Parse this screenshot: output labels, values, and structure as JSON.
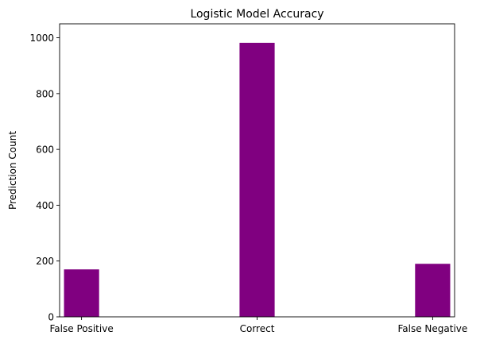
{
  "chart_data": {
    "type": "bar",
    "title": "Logistic Model Accuracy",
    "xlabel": "",
    "ylabel": "Prediction Count",
    "categories": [
      "False Positive",
      "Correct",
      "False Negative"
    ],
    "values": [
      170,
      982,
      190
    ],
    "ylim": [
      0,
      1050
    ],
    "yticks": [
      0,
      200,
      400,
      600,
      800,
      1000
    ],
    "bar_color": "#800080",
    "grid": false,
    "legend": "none"
  }
}
